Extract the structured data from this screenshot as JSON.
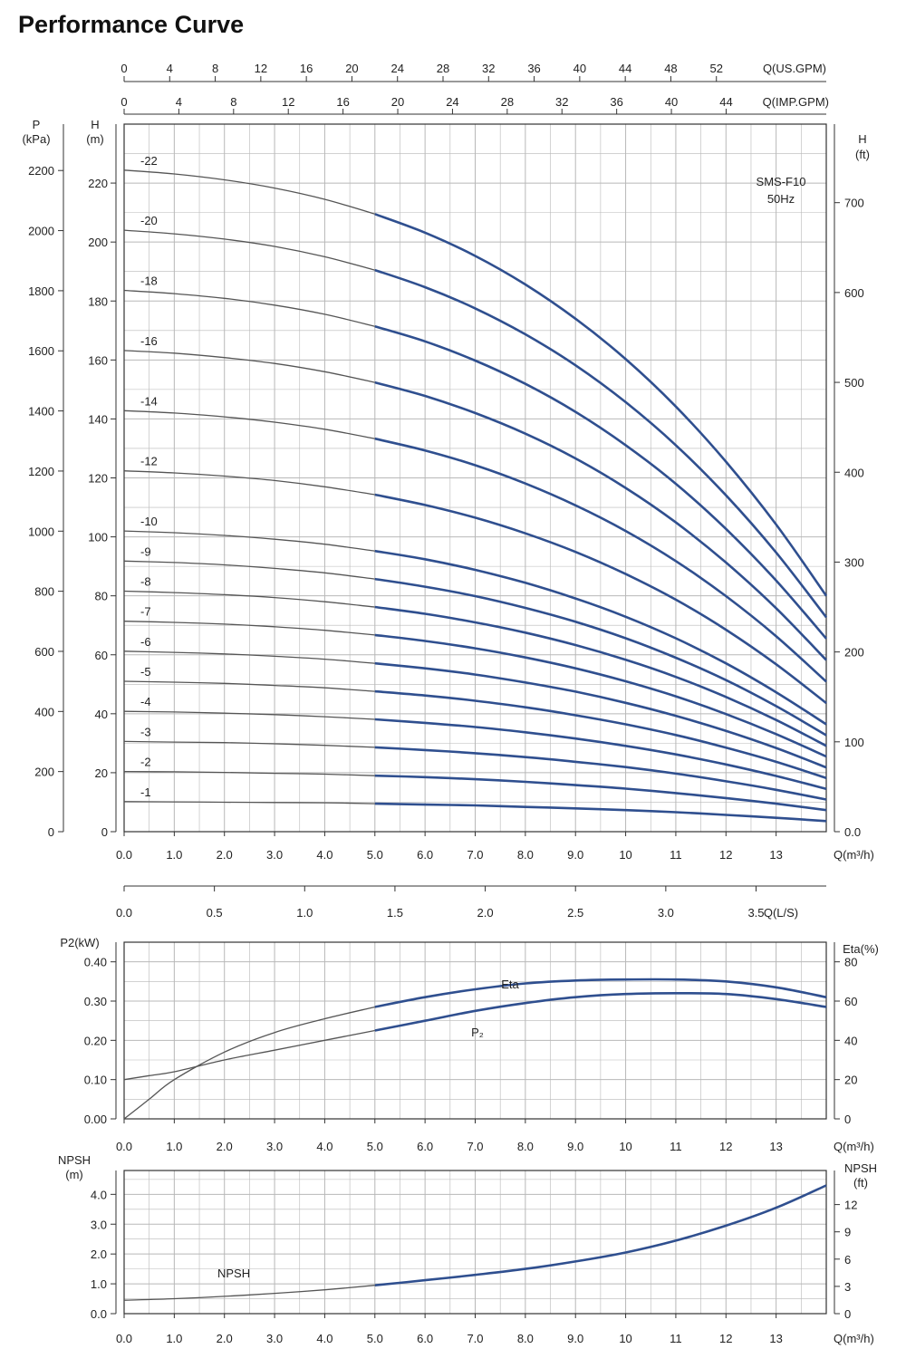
{
  "title": "Performance Curve",
  "colors": {
    "curve_dark": "#2f4f8f",
    "curve_thin": "#555555",
    "grid": "#b8b8b8",
    "frame": "#333333"
  },
  "chart_data": [
    {
      "type": "line",
      "name": "head",
      "annotation": [
        "SMS-F10",
        "50Hz"
      ],
      "x_unit_label": "Q(m³/h)",
      "x_ticks": [
        0.0,
        1.0,
        2.0,
        3.0,
        4.0,
        5.0,
        6.0,
        7.0,
        8.0,
        9.0,
        10,
        11,
        12,
        13
      ],
      "x_tick_labels": [
        "0.0",
        "1.0",
        "2.0",
        "3.0",
        "4.0",
        "5.0",
        "6.0",
        "7.0",
        "8.0",
        "9.0",
        "10",
        "11",
        "12",
        "13"
      ],
      "xlim": [
        0,
        14
      ],
      "ylabel_left": [
        "H",
        "(m)"
      ],
      "ylabel_right": [
        "H",
        "(ft)"
      ],
      "ylabel_pressure": [
        "P",
        "(kPa)"
      ],
      "ylim": [
        0,
        240
      ],
      "y_ticks_m": [
        0,
        20,
        40,
        60,
        80,
        100,
        120,
        140,
        160,
        180,
        200,
        220
      ],
      "y_ticks_kpa": [
        0,
        200,
        400,
        600,
        800,
        1000,
        1200,
        1400,
        1600,
        1800,
        2000,
        2200
      ],
      "y_ticks_ft": [
        "0.0",
        "100",
        "200",
        "300",
        "400",
        "500",
        "600",
        "700"
      ],
      "top_axis_us_gpm": {
        "label": "Q(US.GPM)",
        "ticks": [
          0,
          4,
          8,
          12,
          16,
          20,
          24,
          28,
          32,
          36,
          40,
          44,
          48,
          52
        ]
      },
      "top_axis_imp_gpm": {
        "label": "Q(IMP.GPM)",
        "ticks": [
          0,
          4,
          8,
          12,
          16,
          20,
          24,
          28,
          32,
          36,
          40,
          44
        ]
      },
      "bottom_axis_ls": {
        "label": "Q(L/S)",
        "ticks": [
          "0.0",
          "0.5",
          "1.0",
          "1.5",
          "2.0",
          "2.5",
          "3.0",
          "3.5"
        ]
      },
      "x": [
        0,
        1,
        2,
        3,
        4,
        5,
        6,
        7,
        8,
        9,
        10,
        11,
        12,
        13,
        14
      ],
      "series": [
        {
          "name": "-22",
          "values": [
            224.4,
            223.1,
            221.1,
            218.3,
            214.5,
            209.5,
            203.2,
            195.3,
            185.6,
            174.0,
            160.3,
            144.2,
            125.5,
            104.2,
            80.0
          ]
        },
        {
          "name": "-20",
          "values": [
            204.0,
            202.8,
            201.0,
            198.5,
            195.0,
            190.5,
            184.7,
            177.5,
            168.7,
            158.2,
            145.7,
            131.1,
            114.1,
            94.7,
            72.7
          ]
        },
        {
          "name": "-18",
          "values": [
            183.6,
            182.5,
            180.9,
            178.6,
            175.5,
            171.4,
            166.3,
            159.8,
            151.9,
            142.4,
            131.1,
            118.0,
            102.7,
            85.2,
            65.5
          ]
        },
        {
          "name": "-16",
          "values": [
            163.2,
            162.3,
            160.8,
            158.8,
            156.0,
            152.4,
            147.8,
            142.0,
            135.0,
            126.6,
            116.6,
            104.9,
            91.3,
            75.8,
            58.2
          ]
        },
        {
          "name": "-14",
          "values": [
            142.8,
            142.0,
            140.7,
            138.9,
            136.5,
            133.3,
            129.3,
            124.3,
            118.1,
            110.7,
            102.0,
            91.8,
            79.9,
            66.3,
            50.9
          ]
        },
        {
          "name": "-12",
          "values": [
            122.4,
            121.7,
            120.6,
            119.1,
            117.0,
            114.3,
            110.8,
            106.5,
            101.2,
            94.9,
            87.4,
            78.7,
            68.5,
            56.8,
            43.6
          ]
        },
        {
          "name": "-10",
          "values": [
            102.0,
            101.4,
            100.5,
            99.2,
            97.5,
            95.2,
            92.4,
            88.8,
            84.4,
            79.1,
            72.9,
            65.6,
            57.1,
            47.3,
            36.4
          ]
        },
        {
          "name": "-9",
          "values": [
            91.8,
            91.3,
            90.5,
            89.3,
            87.8,
            85.7,
            83.1,
            79.9,
            75.9,
            71.2,
            65.6,
            59.0,
            51.4,
            42.6,
            32.7
          ]
        },
        {
          "name": "-8",
          "values": [
            81.6,
            81.1,
            80.4,
            79.4,
            78.0,
            76.2,
            73.9,
            71.0,
            67.5,
            63.3,
            58.3,
            52.5,
            45.7,
            37.9,
            29.1
          ]
        },
        {
          "name": "-7",
          "values": [
            71.4,
            71.0,
            70.4,
            69.5,
            68.3,
            66.7,
            64.7,
            62.2,
            59.1,
            55.4,
            51.0,
            45.9,
            39.9,
            33.1,
            25.5
          ]
        },
        {
          "name": "-6",
          "values": [
            61.2,
            60.8,
            60.3,
            59.5,
            58.5,
            57.1,
            55.4,
            53.3,
            50.6,
            47.5,
            43.7,
            39.3,
            34.2,
            28.4,
            21.8
          ]
        },
        {
          "name": "-5",
          "values": [
            51.0,
            50.7,
            50.3,
            49.6,
            48.8,
            47.6,
            46.2,
            44.4,
            42.2,
            39.5,
            36.4,
            32.8,
            28.5,
            23.7,
            18.2
          ]
        },
        {
          "name": "-4",
          "values": [
            40.8,
            40.6,
            40.2,
            39.7,
            39.0,
            38.1,
            36.9,
            35.5,
            33.7,
            31.6,
            29.1,
            26.2,
            22.8,
            18.9,
            14.5
          ]
        },
        {
          "name": "-3",
          "values": [
            30.6,
            30.4,
            30.2,
            29.8,
            29.3,
            28.6,
            27.7,
            26.6,
            25.3,
            23.7,
            21.9,
            19.7,
            17.1,
            14.2,
            10.9
          ]
        },
        {
          "name": "-2",
          "values": [
            20.4,
            20.3,
            20.1,
            19.8,
            19.5,
            19.0,
            18.5,
            17.8,
            16.9,
            15.8,
            14.6,
            13.1,
            11.4,
            9.5,
            7.3
          ]
        },
        {
          "name": "-1",
          "values": [
            10.2,
            10.1,
            10.0,
            9.9,
            9.8,
            9.5,
            9.2,
            8.9,
            8.4,
            7.9,
            7.3,
            6.6,
            5.7,
            4.7,
            3.6
          ]
        }
      ]
    },
    {
      "type": "line",
      "name": "power-efficiency",
      "x_unit_label": "Q(m³/h)",
      "x_ticks": [
        0.0,
        1.0,
        2.0,
        3.0,
        4.0,
        5.0,
        6.0,
        7.0,
        8.0,
        9.0,
        10,
        11,
        12,
        13
      ],
      "x_tick_labels": [
        "0.0",
        "1.0",
        "2.0",
        "3.0",
        "4.0",
        "5.0",
        "6.0",
        "7.0",
        "8.0",
        "9.0",
        "10",
        "11",
        "12",
        "13"
      ],
      "xlim": [
        0,
        14
      ],
      "ylabel_left": "P2(kW)",
      "ylabel_right": "Eta(%)",
      "ylim": [
        0,
        0.45
      ],
      "y_ticks_left": [
        "0.00",
        "0.10",
        "0.20",
        "0.30",
        "0.40"
      ],
      "y_ticks_right": [
        "0",
        "20",
        "40",
        "60",
        "80"
      ],
      "x": [
        0,
        0.5,
        1,
        2,
        3,
        4,
        5,
        6,
        7,
        8,
        9,
        10,
        11,
        12,
        13,
        14
      ],
      "series": [
        {
          "name": "P₂",
          "values": [
            0.1,
            0.11,
            0.12,
            0.15,
            0.175,
            0.2,
            0.225,
            0.25,
            0.275,
            0.295,
            0.31,
            0.318,
            0.32,
            0.318,
            0.305,
            0.285
          ]
        },
        {
          "name": "Eta",
          "values": [
            0.0,
            10,
            20,
            34,
            44,
            51,
            57,
            62,
            66,
            69,
            70.5,
            71,
            71,
            70,
            67,
            62
          ]
        }
      ]
    },
    {
      "type": "line",
      "name": "npsh",
      "x_unit_label": "Q(m³/h)",
      "x_ticks": [
        0.0,
        1.0,
        2.0,
        3.0,
        4.0,
        5.0,
        6.0,
        7.0,
        8.0,
        9.0,
        10,
        11,
        12,
        13
      ],
      "x_tick_labels": [
        "0.0",
        "1.0",
        "2.0",
        "3.0",
        "4.0",
        "5.0",
        "6.0",
        "7.0",
        "8.0",
        "9.0",
        "10",
        "11",
        "12",
        "13"
      ],
      "xlim": [
        0,
        14
      ],
      "ylabel_left": [
        "NPSH",
        "(m)"
      ],
      "ylabel_right": [
        "NPSH",
        "(ft)"
      ],
      "ylim": [
        0,
        4.8
      ],
      "y_ticks_left": [
        "0.0",
        "1.0",
        "2.0",
        "3.0",
        "4.0"
      ],
      "y_ticks_right": [
        "0",
        "3",
        "6",
        "9",
        "12"
      ],
      "x": [
        0,
        1,
        2,
        3,
        4,
        5,
        6,
        7,
        8,
        9,
        10,
        11,
        12,
        13,
        14
      ],
      "series": [
        {
          "name": "NPSH",
          "values": [
            0.45,
            0.5,
            0.58,
            0.68,
            0.8,
            0.95,
            1.12,
            1.3,
            1.5,
            1.75,
            2.05,
            2.45,
            2.95,
            3.55,
            4.3
          ]
        }
      ]
    }
  ]
}
